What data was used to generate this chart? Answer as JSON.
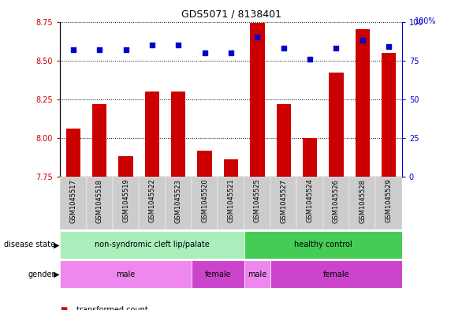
{
  "title": "GDS5071 / 8138401",
  "samples": [
    "GSM1045517",
    "GSM1045518",
    "GSM1045519",
    "GSM1045522",
    "GSM1045523",
    "GSM1045520",
    "GSM1045521",
    "GSM1045525",
    "GSM1045527",
    "GSM1045524",
    "GSM1045526",
    "GSM1045528",
    "GSM1045529"
  ],
  "transformed_count": [
    8.06,
    8.22,
    7.88,
    8.3,
    8.3,
    7.92,
    7.86,
    8.74,
    8.22,
    8.0,
    8.42,
    8.7,
    8.55
  ],
  "percentile_rank": [
    82,
    82,
    82,
    85,
    85,
    80,
    80,
    90,
    83,
    76,
    83,
    88,
    84
  ],
  "y_min": 7.75,
  "y_max": 8.75,
  "y_ticks_left": [
    7.75,
    8.0,
    8.25,
    8.5,
    8.75
  ],
  "y_ticks_right": [
    0,
    25,
    50,
    75,
    100
  ],
  "bar_color": "#cc0000",
  "dot_color": "#0000cc",
  "bar_bottom": 7.75,
  "disease_state_groups": [
    {
      "label": "non-syndromic cleft lip/palate",
      "start": 0,
      "end": 7,
      "color": "#aaeebb"
    },
    {
      "label": "healthy control",
      "start": 7,
      "end": 13,
      "color": "#44cc55"
    }
  ],
  "gender_groups": [
    {
      "label": "male",
      "start": 0,
      "end": 5,
      "color": "#ee88ee"
    },
    {
      "label": "female",
      "start": 5,
      "end": 7,
      "color": "#cc44cc"
    },
    {
      "label": "male",
      "start": 7,
      "end": 8,
      "color": "#ee88ee"
    },
    {
      "label": "female",
      "start": 8,
      "end": 13,
      "color": "#cc44cc"
    }
  ],
  "left_axis_color": "#cc0000",
  "right_axis_color": "#0000cc",
  "grid_color": "#000000",
  "xtick_bg_color": "#cccccc",
  "background_color": "#ffffff"
}
